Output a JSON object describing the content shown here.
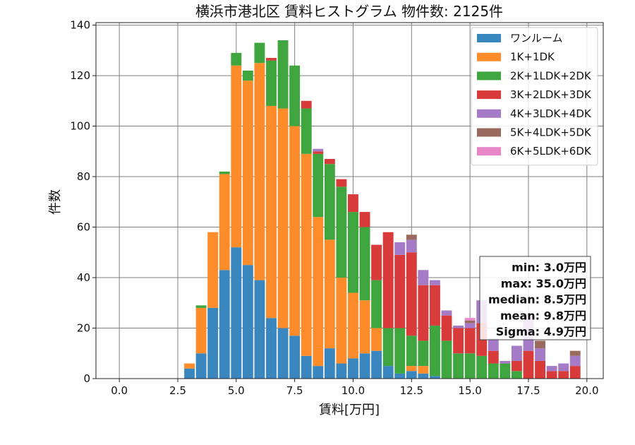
{
  "chart_data": {
    "type": "bar",
    "stacked": true,
    "title": "横浜市港北区 賃料ヒストグラム 物件数: 2125件",
    "xlabel": "賃料[万円]",
    "ylabel": "件数",
    "xlim": [
      -1.0,
      20.7
    ],
    "ylim": [
      0,
      141
    ],
    "x_ticks": [
      0.0,
      2.5,
      5.0,
      7.5,
      10.0,
      12.5,
      15.0,
      17.5,
      20.0
    ],
    "x_tick_labels": [
      "0.0",
      "2.5",
      "5.0",
      "7.5",
      "10.0",
      "12.5",
      "15.0",
      "17.5",
      "20.0"
    ],
    "y_ticks": [
      0,
      20,
      40,
      60,
      80,
      100,
      120,
      140
    ],
    "y_tick_labels": [
      "0",
      "20",
      "40",
      "60",
      "80",
      "100",
      "120",
      "140"
    ],
    "grid": true,
    "legend_position": "top-right",
    "bin_width": 0.5,
    "x": [
      3.0,
      3.5,
      4.0,
      4.5,
      5.0,
      5.5,
      6.0,
      6.5,
      7.0,
      7.5,
      8.0,
      8.5,
      9.0,
      9.5,
      10.0,
      10.5,
      11.0,
      11.5,
      12.0,
      12.5,
      13.0,
      13.5,
      14.0,
      14.5,
      15.0,
      15.5,
      16.0,
      16.5,
      17.0,
      17.5,
      18.0,
      18.5,
      19.0,
      19.5
    ],
    "series": [
      {
        "name": "ワンルーム",
        "color": "#3a87c0",
        "values": [
          4,
          10,
          28,
          43,
          52,
          45,
          39,
          24,
          20,
          17,
          9,
          5,
          12,
          6,
          8,
          10,
          11,
          5,
          2,
          3,
          2,
          1,
          0,
          0,
          0,
          0,
          0,
          0,
          0,
          0,
          0,
          0,
          0,
          0
        ]
      },
      {
        "name": "1K+1DK",
        "color": "#ff8c2a",
        "values": [
          2,
          18,
          30,
          38,
          72,
          73,
          86,
          84,
          87,
          83,
          80,
          59,
          43,
          34,
          26,
          21,
          9,
          0,
          0,
          2,
          3,
          0,
          0,
          0,
          0,
          0,
          0,
          0,
          0,
          0,
          0,
          0,
          0,
          0
        ]
      },
      {
        "name": "2K+1LDK+2DK",
        "color": "#3fa63f",
        "values": [
          0,
          1,
          0,
          1,
          5,
          4,
          8,
          18,
          27,
          24,
          18,
          25,
          30,
          36,
          32,
          29,
          19,
          15,
          18,
          12,
          10,
          20,
          15,
          10,
          10,
          9,
          6,
          6,
          3,
          0,
          0,
          0,
          0,
          0
        ]
      },
      {
        "name": "3K+2LDK+3DK",
        "color": "#d93a3a",
        "values": [
          0,
          0,
          0,
          0,
          0,
          0,
          0,
          1,
          0,
          0,
          3,
          1,
          2,
          3,
          7,
          6,
          14,
          38,
          29,
          33,
          22,
          16,
          10,
          10,
          10,
          13,
          5,
          0,
          4,
          11,
          7,
          3,
          3,
          5
        ]
      },
      {
        "name": "4K+3LDK+4DK",
        "color": "#a57bc7",
        "values": [
          0,
          0,
          0,
          0,
          0,
          0,
          0,
          0,
          0,
          0,
          0,
          1,
          0,
          0,
          0,
          0,
          0,
          0,
          5,
          5,
          6,
          2,
          2,
          1,
          2,
          9,
          5,
          1,
          6,
          14,
          5,
          2,
          3,
          4
        ]
      },
      {
        "name": "5K+4LDK+5DK",
        "color": "#9a6a5e",
        "values": [
          0,
          0,
          0,
          0,
          0,
          0,
          0,
          0,
          0,
          0,
          0,
          0,
          0,
          0,
          0,
          0,
          0,
          0,
          0,
          2,
          0,
          0,
          0,
          0,
          1,
          0,
          0,
          0,
          0,
          1,
          3,
          0,
          0,
          2
        ]
      },
      {
        "name": "6K+5LDK+6DK",
        "color": "#e887c8",
        "values": [
          0,
          0,
          0,
          0,
          0,
          0,
          0,
          0,
          0,
          0,
          0,
          0,
          0,
          0,
          0,
          0,
          0,
          0,
          0,
          0,
          0,
          0,
          0,
          0,
          1,
          0,
          0,
          0,
          0,
          0,
          0,
          0,
          0,
          0
        ]
      }
    ],
    "stats_box": {
      "lines": [
        "min: 3.0万円",
        "max: 35.0万円",
        "median: 8.5万円",
        "mean: 9.8万円",
        "Sigma: 4.9万円"
      ]
    }
  }
}
